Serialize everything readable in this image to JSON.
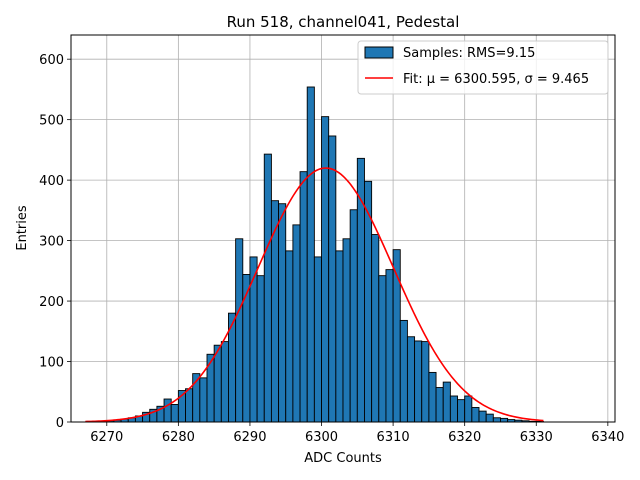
{
  "chart_data": {
    "type": "bar",
    "title": "Run 518, channel041, Pedestal",
    "xlabel": "ADC Counts",
    "ylabel": "Entries",
    "xlim": [
      6265,
      6341
    ],
    "ylim": [
      0,
      640
    ],
    "xticks": [
      6270,
      6280,
      6290,
      6300,
      6310,
      6320,
      6330,
      6340
    ],
    "yticks": [
      0,
      100,
      200,
      300,
      400,
      500,
      600
    ],
    "grid": true,
    "legend_position": "top-right",
    "bin_width": 1,
    "bins_start": [
      6268,
      6269,
      6270,
      6271,
      6272,
      6273,
      6274,
      6275,
      6276,
      6277,
      6278,
      6279,
      6280,
      6281,
      6282,
      6283,
      6284,
      6285,
      6286,
      6287,
      6288,
      6289,
      6290,
      6291,
      6292,
      6293,
      6294,
      6295,
      6296,
      6297,
      6298,
      6299,
      6300,
      6301,
      6302,
      6303,
      6304,
      6305,
      6306,
      6307,
      6308,
      6309,
      6310,
      6311,
      6312,
      6313,
      6314,
      6315,
      6316,
      6317,
      6318,
      6319,
      6320,
      6321,
      6322,
      6323,
      6324,
      6325,
      6326,
      6327,
      6328,
      6329,
      6330
    ],
    "counts": [
      1,
      1,
      2,
      3,
      5,
      7,
      10,
      16,
      21,
      26,
      38,
      29,
      52,
      55,
      80,
      73,
      112,
      127,
      133,
      180,
      303,
      244,
      273,
      242,
      443,
      366,
      361,
      283,
      326,
      414,
      554,
      273,
      505,
      473,
      283,
      303,
      351,
      436,
      398,
      310,
      242,
      252,
      285,
      168,
      141,
      134,
      133,
      82,
      57,
      66,
      43,
      37,
      43,
      24,
      18,
      13,
      7,
      6,
      4,
      3,
      2,
      1,
      1
    ],
    "series": [
      {
        "name": "Samples: RMS=9.15",
        "kind": "histogram",
        "color": "#1f77b4"
      },
      {
        "name": "Fit: μ = 6300.595, σ = 9.465",
        "kind": "gaussian",
        "color": "#ff0000",
        "mu": 6300.595,
        "sigma": 9.465,
        "amplitude": 420,
        "x_range": [
          6267,
          6331
        ]
      }
    ]
  }
}
